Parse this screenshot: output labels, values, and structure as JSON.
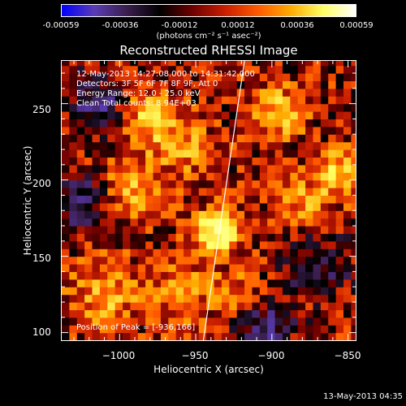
{
  "colorbar": {
    "tick_labels": [
      "-0.00059",
      "-0.00036",
      "-0.00012",
      "0.00012",
      "0.00036",
      "0.00059"
    ],
    "units": "(photons cm⁻² s⁻¹ asec⁻²)",
    "range": [
      -0.00059,
      0.00059
    ],
    "colors": [
      "#0000ff",
      "#5a3cb4",
      "#3a1e4e",
      "#000000",
      "#6e0000",
      "#c81e00",
      "#ff5a00",
      "#ffaa00",
      "#ffff64",
      "#ffffff"
    ]
  },
  "chart_data": {
    "type": "heatmap",
    "title": "Reconstructed RHESSI Image",
    "xlabel": "Heliocentric X (arcsec)",
    "ylabel": "Heliocentric Y (arcsec)",
    "xlim": [
      -1038,
      -845
    ],
    "ylim": [
      95,
      278
    ],
    "x_tick_values": [
      -1000,
      -950,
      -900,
      -850
    ],
    "x_tick_labels": [
      "−1000",
      "−950",
      "−900",
      "−850"
    ],
    "y_tick_values": [
      100,
      150,
      200,
      250
    ],
    "y_tick_labels": [
      "100",
      "150",
      "200",
      "250"
    ],
    "peak": [
      -936,
      166
    ],
    "limb_line": [
      [
        -945,
        95
      ],
      [
        -918,
        278
      ]
    ]
  },
  "info": {
    "time_line": "12-May-2013 14:27:08.000 to 14:31:42.000",
    "detectors_line": "Detectors: 3F 5F 6F 7F 8F 9F, Att 0",
    "energy_line": "Energy Range: 12.0 - 25.0 keV",
    "clean_line": "Clean     Total counts: 8.94E+03",
    "peak_line": "Position of Peak = [-936,166]"
  },
  "timestamp": "13-May-2013 04:35"
}
